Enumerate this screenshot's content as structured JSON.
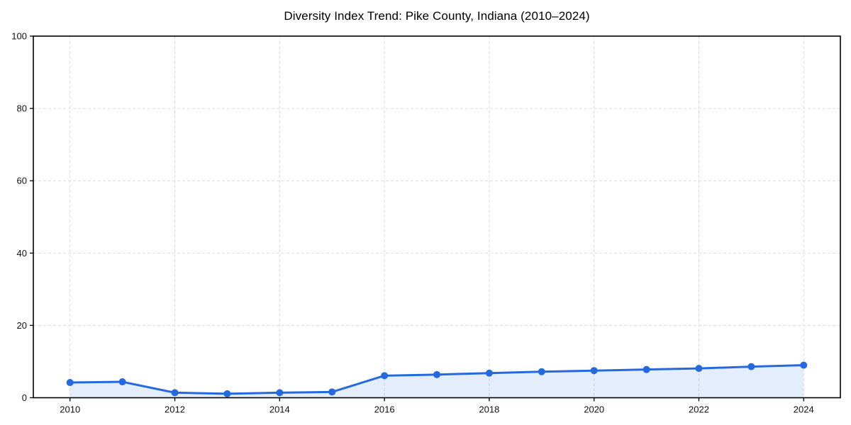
{
  "title": "Diversity Index Trend: Pike County, Indiana (2010–2024)",
  "chart_data": {
    "type": "line",
    "title": "Diversity Index Trend: Pike County, Indiana (2010–2024)",
    "xlabel": "",
    "ylabel": "",
    "x": [
      2010,
      2011,
      2012,
      2013,
      2014,
      2015,
      2016,
      2017,
      2018,
      2019,
      2020,
      2021,
      2022,
      2023,
      2024
    ],
    "series": [
      {
        "name": "Diversity Index",
        "values": [
          4.2,
          4.4,
          1.4,
          1.1,
          1.4,
          1.6,
          6.1,
          6.4,
          6.8,
          7.2,
          7.5,
          7.8,
          8.1,
          8.6,
          9.0
        ]
      }
    ],
    "xlim": [
      2009.3,
      2024.7
    ],
    "ylim": [
      0,
      100
    ],
    "xticks": [
      2010,
      2012,
      2014,
      2016,
      2018,
      2020,
      2022,
      2024
    ],
    "yticks": [
      0,
      20,
      40,
      60,
      80,
      100
    ],
    "grid": true,
    "grid_style": "dashed",
    "legend": false,
    "marker": "circle",
    "area_fill": true,
    "colors": {
      "line": "#2569e0",
      "marker": "#2569e0",
      "fill": "rgba(37,105,224,0.12)",
      "grid": "#dcdcdc",
      "spine": "#000000",
      "text": "#111111",
      "background": "#ffffff"
    }
  }
}
